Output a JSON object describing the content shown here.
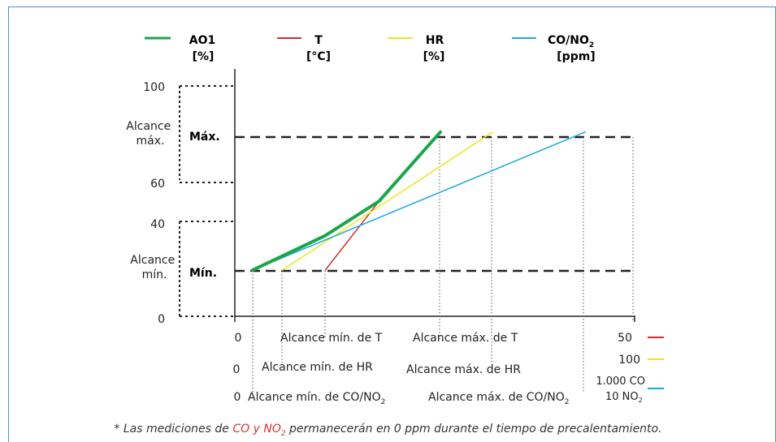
{
  "legend": [
    {
      "name": "AO1",
      "unit": "[%]",
      "color": "#1aa64a"
    },
    {
      "name": "T",
      "unit": "[°C]",
      "color": "#d42a2a"
    },
    {
      "name": "HR",
      "unit": "[%]",
      "color": "#f2e51a"
    },
    {
      "name": "CO/NO",
      "name_sub": "2",
      "unit": "[ppm]",
      "color": "#1aa8e0"
    }
  ],
  "y_axis": {
    "ticks": [
      "100",
      "60",
      "40",
      "0"
    ],
    "range_max_label": "Alcance máx.",
    "range_min_label": "Alcance mín.",
    "max_marker": "Máx.",
    "min_marker": "Mín."
  },
  "x_rows": [
    {
      "zero": "0",
      "min_label": "Alcance mín. de T",
      "max_label": "Alcance máx. de T",
      "end": "50",
      "color": "#d42a2a"
    },
    {
      "zero": "0",
      "min_label": "Alcance mín. de HR",
      "max_label": "Alcance máx. de HR",
      "end": "100",
      "color": "#f2e51a"
    },
    {
      "zero": "0",
      "min_label": "Alcance mín. de CO/NO",
      "min_sub": "2",
      "max_label": "Alcance máx. de CO/NO",
      "max_sub": "2",
      "end": "1.000 CO",
      "end2": "10 NO",
      "end2_sub": "2",
      "color": "#1aa8e0"
    }
  ],
  "note": {
    "prefix": "* Las mediciones de ",
    "highlight": "CO y NO",
    "highlight_sub": "2",
    "suffix": " permanecerán en 0 ppm durante el tiempo de precalentamiento."
  },
  "chart_data": {
    "type": "line",
    "ylim": [
      0,
      100
    ],
    "y_ticks": [
      0,
      40,
      60,
      100
    ],
    "series": [
      {
        "name": "T",
        "points": [
          [
            0.226,
            20
          ],
          [
            0.361,
            50
          ],
          [
            0.514,
            80
          ]
        ]
      },
      {
        "name": "HR",
        "points": [
          [
            0.118,
            20
          ],
          [
            0.645,
            80
          ]
        ]
      },
      {
        "name": "CO/NO2",
        "points": [
          [
            0.044,
            20
          ],
          [
            0.876,
            80
          ]
        ]
      },
      {
        "name": "AO1",
        "points": [
          [
            0.044,
            20
          ],
          [
            0.226,
            35
          ],
          [
            0.361,
            50
          ],
          [
            0.514,
            80
          ]
        ]
      }
    ]
  }
}
